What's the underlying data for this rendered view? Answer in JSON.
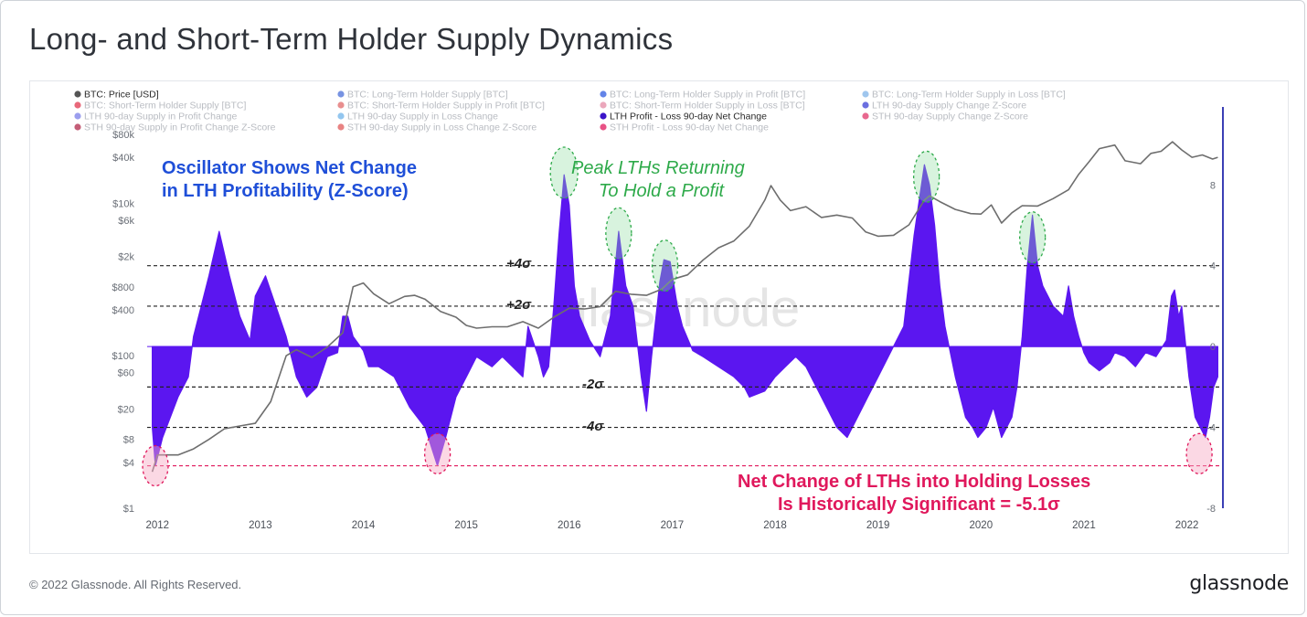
{
  "page": {
    "title": "Long- and Short-Term Holder Supply Dynamics",
    "copyright": "© 2022 Glassnode. All Rights Reserved.",
    "brand": "glassnode",
    "watermark": "glassnode"
  },
  "colors": {
    "price": "#6e6e6e",
    "oscillator": "#5b16f0",
    "annotation_blue": "#1f4fd8",
    "annotation_green": "#2eaa4a",
    "annotation_red": "#e0185c",
    "right_axis": "#3b3fb5"
  },
  "legend": [
    {
      "label": "BTC: Price [USD]",
      "color": "#555555",
      "active": true
    },
    {
      "label": "BTC: Long-Term Holder Supply [BTC]",
      "color": "#4a6fd8",
      "active": false
    },
    {
      "label": "BTC: Long-Term Holder Supply in Profit [BTC]",
      "color": "#2f5be0",
      "active": false
    },
    {
      "label": "BTC: Long-Term Holder Supply in Loss [BTC]",
      "color": "#7fb3e8",
      "active": false
    },
    {
      "label": "BTC: Short-Term Holder Supply [BTC]",
      "color": "#e0364e",
      "active": false
    },
    {
      "label": "BTC: Short-Term Holder Supply in Profit [BTC]",
      "color": "#e06a6a",
      "active": false
    },
    {
      "label": "BTC: Short-Term Holder Supply in Loss [BTC]",
      "color": "#e48aa4",
      "active": false
    },
    {
      "label": "LTH 90-day Supply Change Z-Score",
      "color": "#3a3fd6",
      "active": false
    },
    {
      "label": "LTH 90-day Supply in Profit Change",
      "color": "#7a7de8",
      "active": false
    },
    {
      "label": "LTH 90-day Supply in Loss Change",
      "color": "#6fb3ea",
      "active": false
    },
    {
      "label": "LTH Profit - Loss 90-day Net Change",
      "color": "#3b14c9",
      "active": true
    },
    {
      "label": "STH 90-day Supply Change Z-Score",
      "color": "#e0366a",
      "active": false
    },
    {
      "label": "STH 90-day Supply in Profit Change Z-Score",
      "color": "#b0284a",
      "active": false
    },
    {
      "label": "STH 90-day Supply in Loss Change Z-Score",
      "color": "#e05a5a",
      "active": false
    },
    {
      "label": "STH Profit - Loss 90-day Net Change",
      "color": "#e0185c",
      "active": false
    }
  ],
  "annotations": {
    "oscillator_line1": "Oscillator Shows Net Change",
    "oscillator_line2": "in LTH Profitability (Z-Score)",
    "peak_line1": "Peak LTHs Returning",
    "peak_line2": "To Hold a Profit",
    "loss_line1": "Net Change of LTHs into Holding Losses",
    "loss_line2": "Is Historically Significant = -5.1σ",
    "band_plus4": "+4σ",
    "band_plus2": "+2σ",
    "band_minus2": "-2σ",
    "band_minus4": "-4σ"
  },
  "chart_data": {
    "type": "line",
    "x_ticks": [
      "2012",
      "2013",
      "2014",
      "2015",
      "2016",
      "2017",
      "2018",
      "2019",
      "2020",
      "2021",
      "2022"
    ],
    "xlim": [
      2011.9,
      2022.35
    ],
    "left_axis": {
      "scale": "log",
      "ticks": [
        "$80k",
        "$40k",
        "$10k",
        "$6k",
        "$2k",
        "$800",
        "$400",
        "$100",
        "$60",
        "$20",
        "$8",
        "$4",
        "$1"
      ],
      "tick_values": [
        80000,
        40000,
        10000,
        6000,
        2000,
        800,
        400,
        100,
        60,
        20,
        8,
        4,
        1
      ],
      "ylim": [
        1,
        80000
      ]
    },
    "right_axis": {
      "ticks": [
        "8",
        "4",
        "0",
        "-4",
        "-8"
      ],
      "tick_values": [
        8,
        4,
        0,
        -4,
        -8
      ],
      "ylim": [
        -8,
        10.5
      ]
    },
    "bands": [
      4,
      2,
      -2,
      -4
    ],
    "min_line": -5.9,
    "series": [
      {
        "name": "BTC: Price [USD]",
        "axis": "left",
        "points": [
          [
            2011.95,
            3
          ],
          [
            2012.0,
            5
          ],
          [
            2012.1,
            5
          ],
          [
            2012.2,
            5
          ],
          [
            2012.35,
            6
          ],
          [
            2012.5,
            8
          ],
          [
            2012.65,
            11
          ],
          [
            2012.8,
            12
          ],
          [
            2012.95,
            13
          ],
          [
            2013.1,
            25
          ],
          [
            2013.25,
            100
          ],
          [
            2013.35,
            120
          ],
          [
            2013.5,
            95
          ],
          [
            2013.65,
            130
          ],
          [
            2013.8,
            200
          ],
          [
            2013.9,
            800
          ],
          [
            2014.0,
            900
          ],
          [
            2014.1,
            650
          ],
          [
            2014.25,
            480
          ],
          [
            2014.4,
            600
          ],
          [
            2014.5,
            620
          ],
          [
            2014.6,
            550
          ],
          [
            2014.75,
            380
          ],
          [
            2014.9,
            320
          ],
          [
            2015.0,
            250
          ],
          [
            2015.1,
            230
          ],
          [
            2015.25,
            240
          ],
          [
            2015.4,
            240
          ],
          [
            2015.55,
            280
          ],
          [
            2015.7,
            230
          ],
          [
            2015.85,
            320
          ],
          [
            2016.0,
            420
          ],
          [
            2016.15,
            410
          ],
          [
            2016.3,
            440
          ],
          [
            2016.45,
            700
          ],
          [
            2016.6,
            640
          ],
          [
            2016.75,
            620
          ],
          [
            2016.9,
            750
          ],
          [
            2017.0,
            1000
          ],
          [
            2017.15,
            1150
          ],
          [
            2017.3,
            1800
          ],
          [
            2017.45,
            2600
          ],
          [
            2017.6,
            3200
          ],
          [
            2017.75,
            5000
          ],
          [
            2017.9,
            11000
          ],
          [
            2017.96,
            17000
          ],
          [
            2018.05,
            11000
          ],
          [
            2018.15,
            8000
          ],
          [
            2018.3,
            9000
          ],
          [
            2018.45,
            6500
          ],
          [
            2018.6,
            7000
          ],
          [
            2018.75,
            6400
          ],
          [
            2018.88,
            4200
          ],
          [
            2019.0,
            3700
          ],
          [
            2019.15,
            3800
          ],
          [
            2019.3,
            5200
          ],
          [
            2019.45,
            11000
          ],
          [
            2019.5,
            12500
          ],
          [
            2019.6,
            10500
          ],
          [
            2019.75,
            8300
          ],
          [
            2019.9,
            7300
          ],
          [
            2020.0,
            7200
          ],
          [
            2020.1,
            9500
          ],
          [
            2020.2,
            5500
          ],
          [
            2020.3,
            7500
          ],
          [
            2020.4,
            9300
          ],
          [
            2020.55,
            9200
          ],
          [
            2020.7,
            11500
          ],
          [
            2020.85,
            15000
          ],
          [
            2020.95,
            24000
          ],
          [
            2021.05,
            35000
          ],
          [
            2021.15,
            52000
          ],
          [
            2021.3,
            58000
          ],
          [
            2021.4,
            36000
          ],
          [
            2021.55,
            33000
          ],
          [
            2021.65,
            45000
          ],
          [
            2021.75,
            48000
          ],
          [
            2021.86,
            64000
          ],
          [
            2021.95,
            50000
          ],
          [
            2022.05,
            40000
          ],
          [
            2022.15,
            43000
          ],
          [
            2022.25,
            38000
          ],
          [
            2022.3,
            40000
          ]
        ]
      },
      {
        "name": "LTH Profit - Loss 90-day Net Change",
        "axis": "right",
        "points": [
          [
            2011.95,
            -4
          ],
          [
            2011.98,
            -5.9
          ],
          [
            2012.05,
            -4.5
          ],
          [
            2012.2,
            -2.5
          ],
          [
            2012.3,
            -1.5
          ],
          [
            2012.35,
            0.5
          ],
          [
            2012.5,
            3.5
          ],
          [
            2012.6,
            5.7
          ],
          [
            2012.7,
            3.5
          ],
          [
            2012.8,
            1.5
          ],
          [
            2012.9,
            0.3
          ],
          [
            2012.95,
            2.5
          ],
          [
            2013.05,
            3.5
          ],
          [
            2013.15,
            2.0
          ],
          [
            2013.25,
            0.5
          ],
          [
            2013.35,
            -1.5
          ],
          [
            2013.45,
            -2.5
          ],
          [
            2013.55,
            -2.0
          ],
          [
            2013.65,
            -0.5
          ],
          [
            2013.75,
            -0.3
          ],
          [
            2013.8,
            1.5
          ],
          [
            2013.85,
            1.5
          ],
          [
            2013.9,
            0.5
          ],
          [
            2014.0,
            -0.2
          ],
          [
            2014.05,
            -1.0
          ],
          [
            2014.15,
            -1.0
          ],
          [
            2014.3,
            -1.5
          ],
          [
            2014.45,
            -3.0
          ],
          [
            2014.6,
            -4.0
          ],
          [
            2014.72,
            -5.9
          ],
          [
            2014.8,
            -4.5
          ],
          [
            2014.9,
            -2.5
          ],
          [
            2015.0,
            -1.5
          ],
          [
            2015.1,
            -0.5
          ],
          [
            2015.25,
            -1.0
          ],
          [
            2015.35,
            -0.5
          ],
          [
            2015.45,
            -1.0
          ],
          [
            2015.55,
            -1.5
          ],
          [
            2015.6,
            1.0
          ],
          [
            2015.7,
            -0.5
          ],
          [
            2015.75,
            -1.5
          ],
          [
            2015.8,
            -1.0
          ],
          [
            2015.85,
            2.0
          ],
          [
            2015.9,
            5.5
          ],
          [
            2015.95,
            8.5
          ],
          [
            2016.0,
            7.0
          ],
          [
            2016.05,
            3.0
          ],
          [
            2016.1,
            1.5
          ],
          [
            2016.2,
            0.3
          ],
          [
            2016.3,
            -0.5
          ],
          [
            2016.4,
            1.5
          ],
          [
            2016.48,
            5.7
          ],
          [
            2016.55,
            3.0
          ],
          [
            2016.62,
            2.0
          ],
          [
            2016.7,
            -1.5
          ],
          [
            2016.75,
            -3.2
          ],
          [
            2016.8,
            -0.5
          ],
          [
            2016.88,
            3.2
          ],
          [
            2016.92,
            4.3
          ],
          [
            2016.98,
            4.2
          ],
          [
            2017.05,
            2.0
          ],
          [
            2017.1,
            1.0
          ],
          [
            2017.2,
            -0.2
          ],
          [
            2017.3,
            -0.5
          ],
          [
            2017.45,
            -1.0
          ],
          [
            2017.6,
            -1.5
          ],
          [
            2017.7,
            -2.0
          ],
          [
            2017.75,
            -2.5
          ],
          [
            2017.9,
            -2.2
          ],
          [
            2018.0,
            -1.5
          ],
          [
            2018.1,
            -1.0
          ],
          [
            2018.2,
            -0.5
          ],
          [
            2018.3,
            -1.0
          ],
          [
            2018.4,
            -2.0
          ],
          [
            2018.5,
            -3.0
          ],
          [
            2018.6,
            -4.0
          ],
          [
            2018.7,
            -4.5
          ],
          [
            2018.8,
            -3.5
          ],
          [
            2018.9,
            -2.5
          ],
          [
            2019.0,
            -1.5
          ],
          [
            2019.1,
            -0.5
          ],
          [
            2019.25,
            1.0
          ],
          [
            2019.35,
            5.5
          ],
          [
            2019.45,
            9.0
          ],
          [
            2019.5,
            8.0
          ],
          [
            2019.55,
            6.0
          ],
          [
            2019.6,
            3.0
          ],
          [
            2019.65,
            1.0
          ],
          [
            2019.75,
            -1.5
          ],
          [
            2019.85,
            -3.5
          ],
          [
            2019.92,
            -4.0
          ],
          [
            2019.97,
            -4.5
          ],
          [
            2020.05,
            -4.0
          ],
          [
            2020.12,
            -3.0
          ],
          [
            2020.2,
            -4.5
          ],
          [
            2020.3,
            -3.5
          ],
          [
            2020.35,
            -2.0
          ],
          [
            2020.4,
            0.5
          ],
          [
            2020.45,
            4.0
          ],
          [
            2020.5,
            6.5
          ],
          [
            2020.55,
            4.0
          ],
          [
            2020.6,
            3.0
          ],
          [
            2020.7,
            2.0
          ],
          [
            2020.8,
            1.5
          ],
          [
            2020.85,
            3.0
          ],
          [
            2020.9,
            1.5
          ],
          [
            2020.95,
            0.5
          ],
          [
            2021.0,
            -0.3
          ],
          [
            2021.05,
            -0.8
          ],
          [
            2021.15,
            -1.2
          ],
          [
            2021.25,
            -0.8
          ],
          [
            2021.3,
            -0.3
          ],
          [
            2021.4,
            -0.5
          ],
          [
            2021.5,
            -1.0
          ],
          [
            2021.6,
            -0.3
          ],
          [
            2021.7,
            -0.5
          ],
          [
            2021.8,
            0.3
          ],
          [
            2021.85,
            2.5
          ],
          [
            2021.88,
            2.8
          ],
          [
            2021.92,
            1.5
          ],
          [
            2021.95,
            2.0
          ],
          [
            2021.98,
            0.5
          ],
          [
            2022.02,
            -1.5
          ],
          [
            2022.08,
            -3.5
          ],
          [
            2022.13,
            -4.0
          ],
          [
            2022.18,
            -4.5
          ],
          [
            2022.22,
            -3.5
          ],
          [
            2022.26,
            -2.0
          ],
          [
            2022.3,
            -1.5
          ]
        ]
      }
    ]
  }
}
